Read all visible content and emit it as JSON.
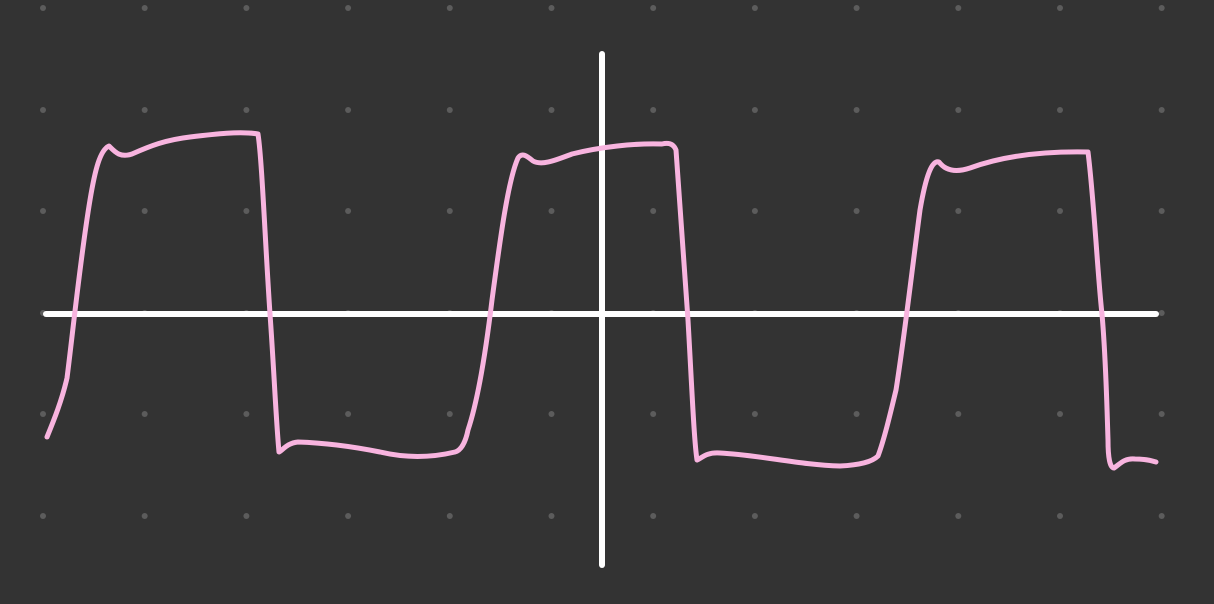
{
  "canvas": {
    "background": "#333333",
    "grid": "dots",
    "grid_dot_color": "#5c5c5c"
  },
  "axes": {
    "color": "#ffffff",
    "horizontal": true,
    "vertical": true
  },
  "stroke": {
    "kind": "hand-drawn square wave",
    "color": "#f8b4df",
    "cycles_shown": 3
  }
}
